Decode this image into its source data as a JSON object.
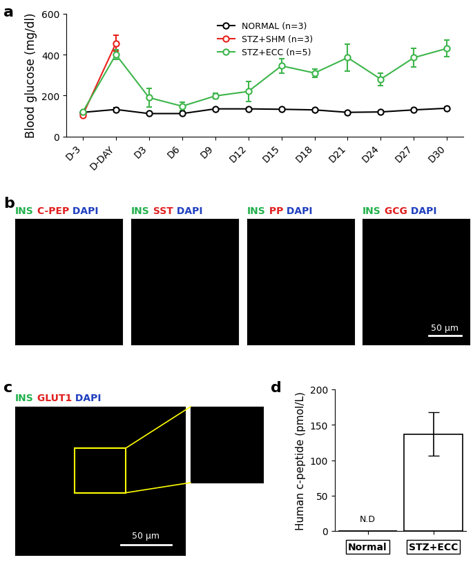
{
  "panel_labels": [
    "a",
    "b",
    "c",
    "d"
  ],
  "chart_data": [
    {
      "panel": "a",
      "type": "line",
      "y_label": "Blood glucose (mg/dl)",
      "categories": [
        "D-3",
        "D-DAY",
        "D3",
        "D6",
        "D9",
        "D12",
        "D15",
        "D18",
        "D21",
        "D24",
        "D27",
        "D30"
      ],
      "ylim": [
        0,
        600
      ],
      "yticks": [
        0,
        200,
        400,
        600
      ],
      "legend": "upper center",
      "marker": "o",
      "series": [
        {
          "name": "NORMAL (n=3)",
          "color": "#000000",
          "values": [
            118,
            132,
            112,
            112,
            135,
            135,
            133,
            130,
            118,
            120,
            130,
            138
          ],
          "errors": [
            5,
            10,
            5,
            5,
            5,
            5,
            4,
            4,
            4,
            4,
            6,
            6
          ]
        },
        {
          "name": "STZ+SHM (n=3)",
          "color": "#e8201c",
          "values": [
            105,
            455,
            null,
            null,
            null,
            null,
            null,
            null,
            null,
            null,
            null,
            null
          ],
          "errors": [
            8,
            38,
            null,
            null,
            null,
            null,
            null,
            null,
            null,
            null,
            null,
            null
          ]
        },
        {
          "name": "STZ+ECC (n=5)",
          "color": "#3cb54a",
          "values": [
            120,
            400,
            190,
            148,
            198,
            220,
            345,
            310,
            385,
            280,
            385,
            430
          ],
          "errors": [
            5,
            25,
            45,
            20,
            15,
            50,
            35,
            20,
            65,
            30,
            45,
            40
          ]
        }
      ]
    },
    {
      "panel": "d",
      "type": "bar",
      "y_label": "Human c-peptide (pmol/L)",
      "categories": [
        "Normal",
        "STZ+ECC"
      ],
      "values": [
        0,
        137
      ],
      "errors": [
        null,
        31
      ],
      "color": "#ffffff",
      "ylim": [
        0,
        200
      ],
      "yticks": [
        0,
        50,
        100,
        150,
        200
      ],
      "annotations": [
        {
          "category": "Normal",
          "text": "N.D"
        }
      ]
    }
  ],
  "images": {
    "b": [
      {
        "stains": [
          {
            "text": "INS",
            "color": "#22b14c"
          },
          {
            "text": "C-PEP",
            "color": "#e02020"
          },
          {
            "text": "DAPI",
            "color": "#1f3fbf"
          }
        ]
      },
      {
        "stains": [
          {
            "text": "INS",
            "color": "#22b14c"
          },
          {
            "text": "SST",
            "color": "#e02020"
          },
          {
            "text": "DAPI",
            "color": "#1f3fbf"
          }
        ]
      },
      {
        "stains": [
          {
            "text": "INS",
            "color": "#22b14c"
          },
          {
            "text": "PP",
            "color": "#e02020"
          },
          {
            "text": "DAPI",
            "color": "#1f3fbf"
          }
        ]
      },
      {
        "stains": [
          {
            "text": "INS",
            "color": "#22b14c"
          },
          {
            "text": "GCG",
            "color": "#e02020"
          },
          {
            "text": "DAPI",
            "color": "#1f3fbf"
          }
        ],
        "scale_bar": "50 µm"
      }
    ],
    "c": {
      "stains": [
        {
          "text": "INS",
          "color": "#22b14c"
        },
        {
          "text": "GLUT1",
          "color": "#e02020"
        },
        {
          "text": "DAPI",
          "color": "#1f3fbf"
        }
      ],
      "scale_bar": "50 µm"
    }
  }
}
